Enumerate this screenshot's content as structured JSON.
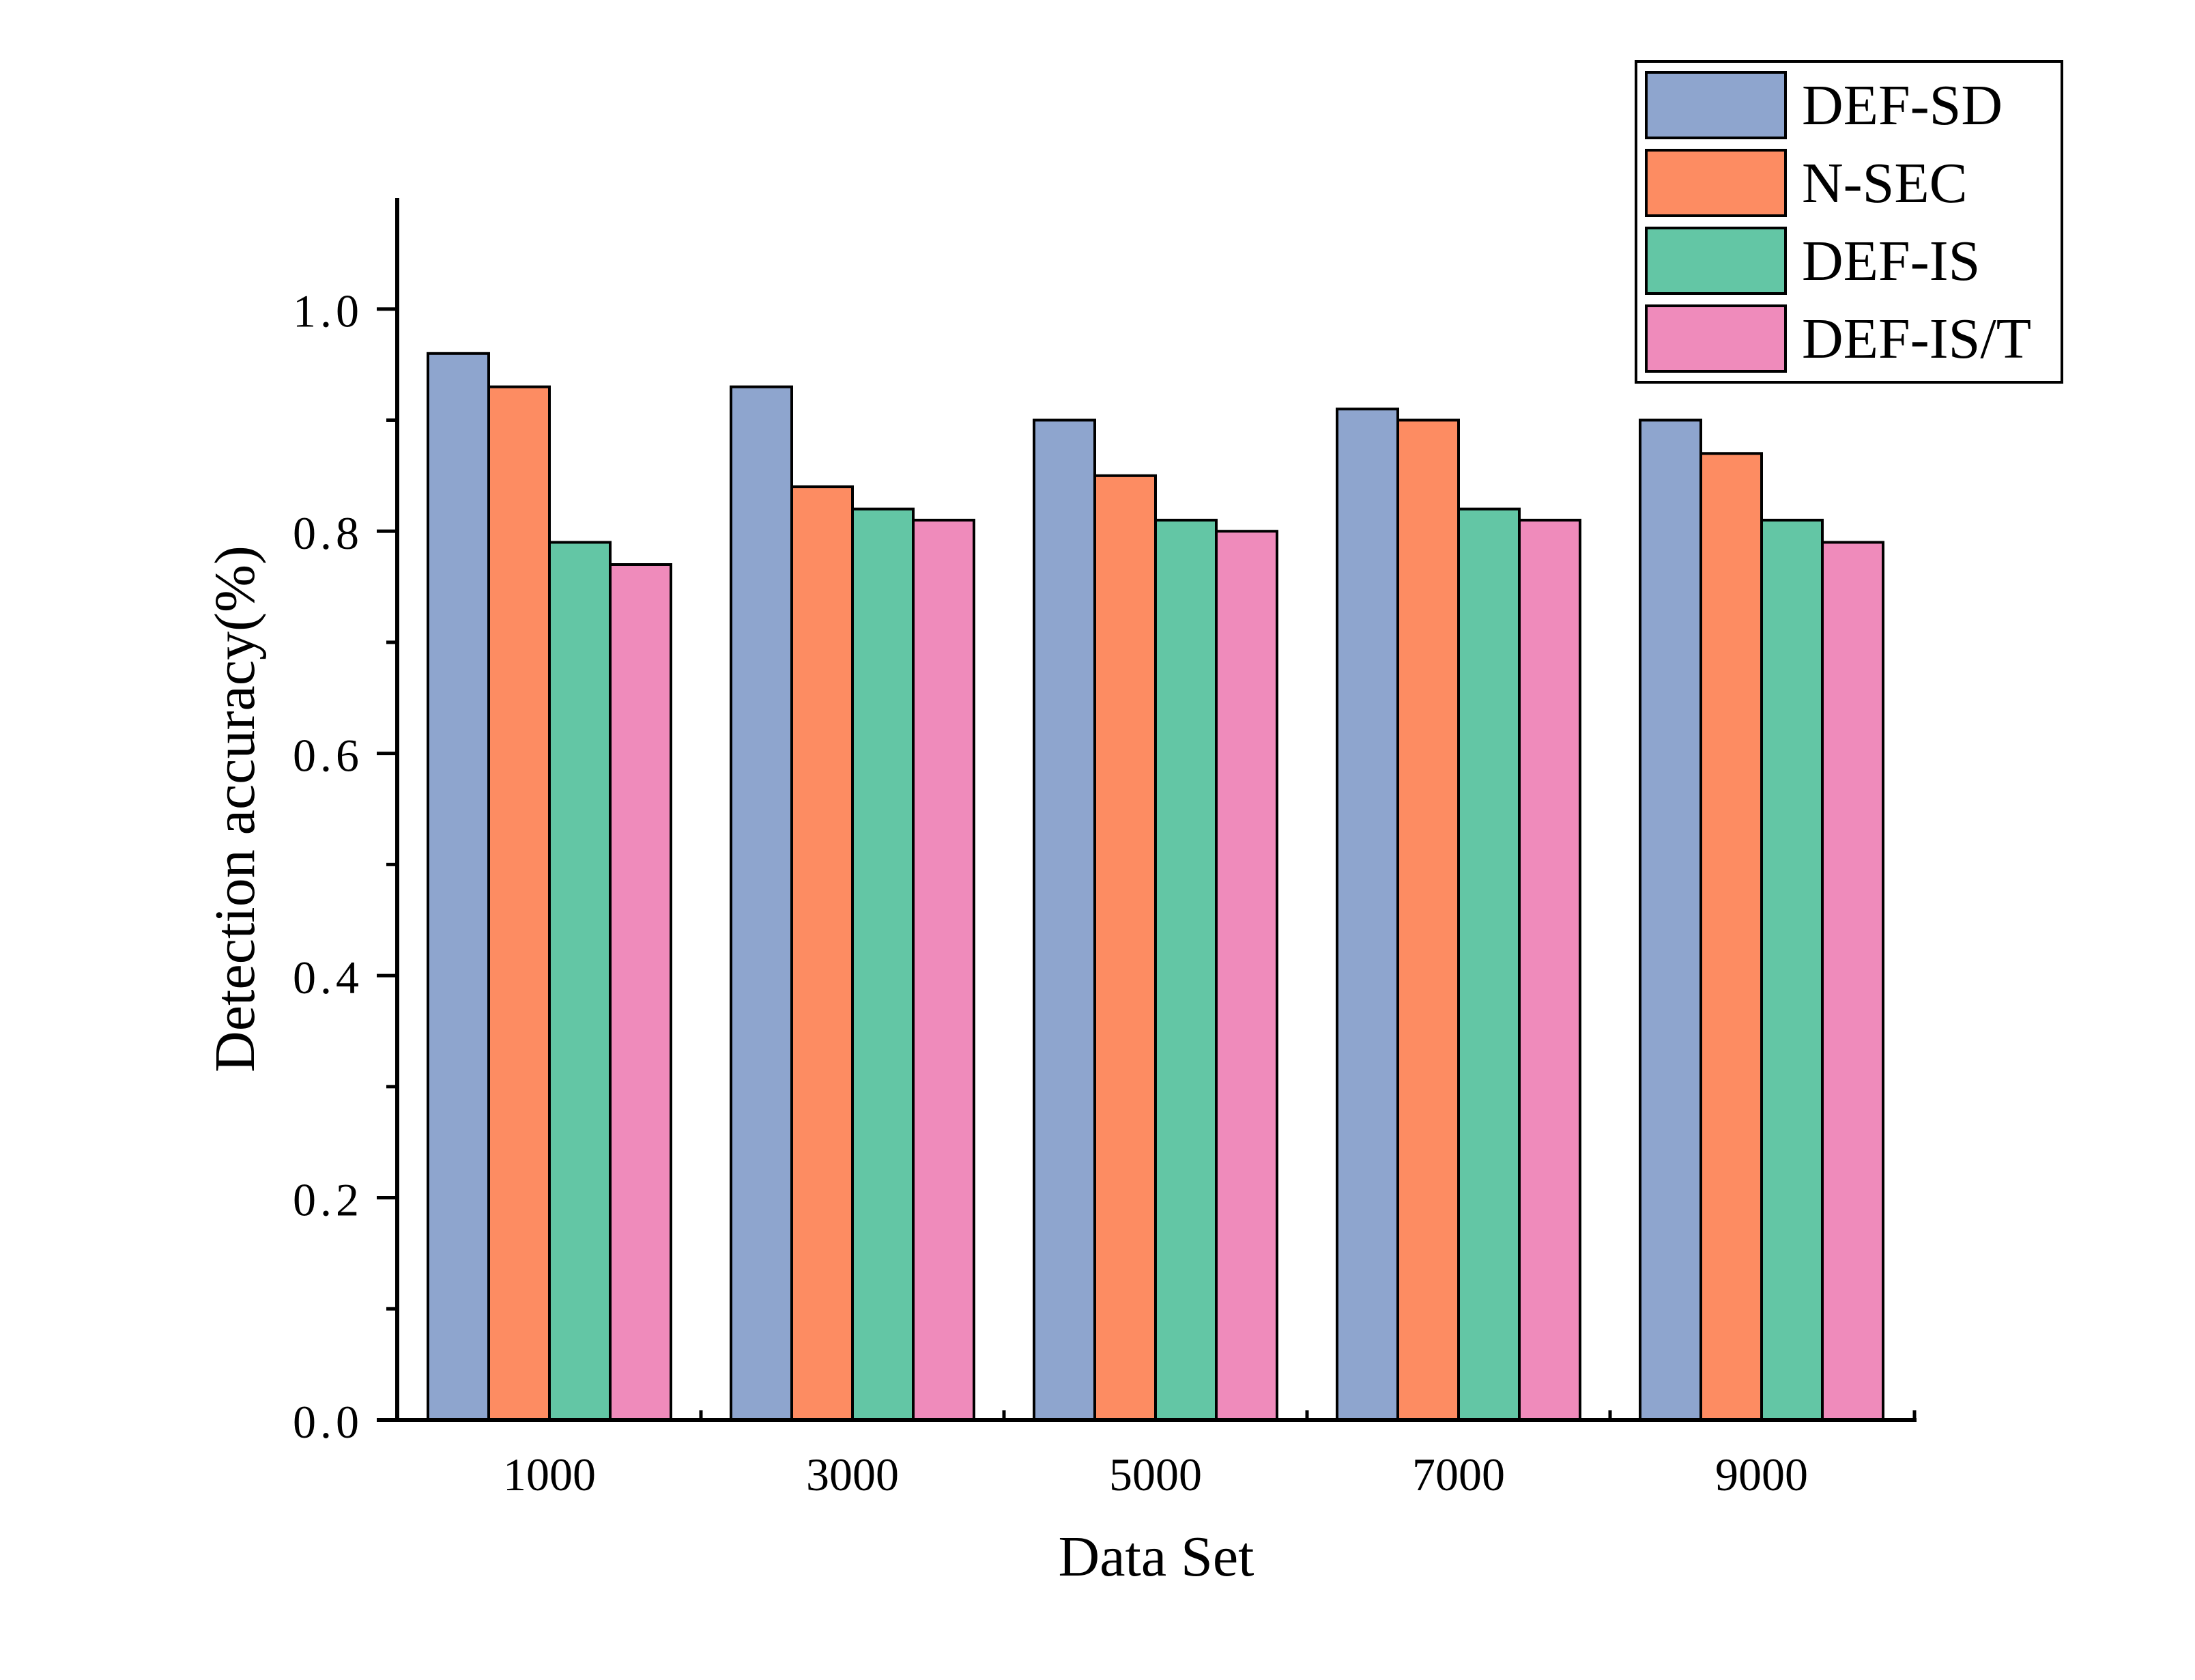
{
  "chart_data": {
    "type": "bar",
    "xlabel": "Data Set",
    "ylabel": "Detection accuracy(%)",
    "categories": [
      "1000",
      "3000",
      "5000",
      "7000",
      "9000"
    ],
    "ylim": [
      0,
      1.1
    ],
    "yticks": [
      "0.0",
      "0.2",
      "0.4",
      "0.6",
      "0.8",
      "1.0"
    ],
    "grid": false,
    "legend_position": "top-right",
    "series": [
      {
        "name": "DEF-SD",
        "color": "#8EA5CE",
        "values": [
          0.96,
          0.93,
          0.9,
          0.91,
          0.9
        ]
      },
      {
        "name": "N-SEC",
        "color": "#FD8C62",
        "values": [
          0.93,
          0.84,
          0.85,
          0.9,
          0.87
        ]
      },
      {
        "name": "DEF-IS",
        "color": "#63C6A5",
        "values": [
          0.79,
          0.82,
          0.81,
          0.82,
          0.81
        ]
      },
      {
        "name": "DEF-IS/T",
        "color": "#EF8BBB",
        "values": [
          0.77,
          0.81,
          0.8,
          0.81,
          0.79
        ]
      }
    ]
  }
}
